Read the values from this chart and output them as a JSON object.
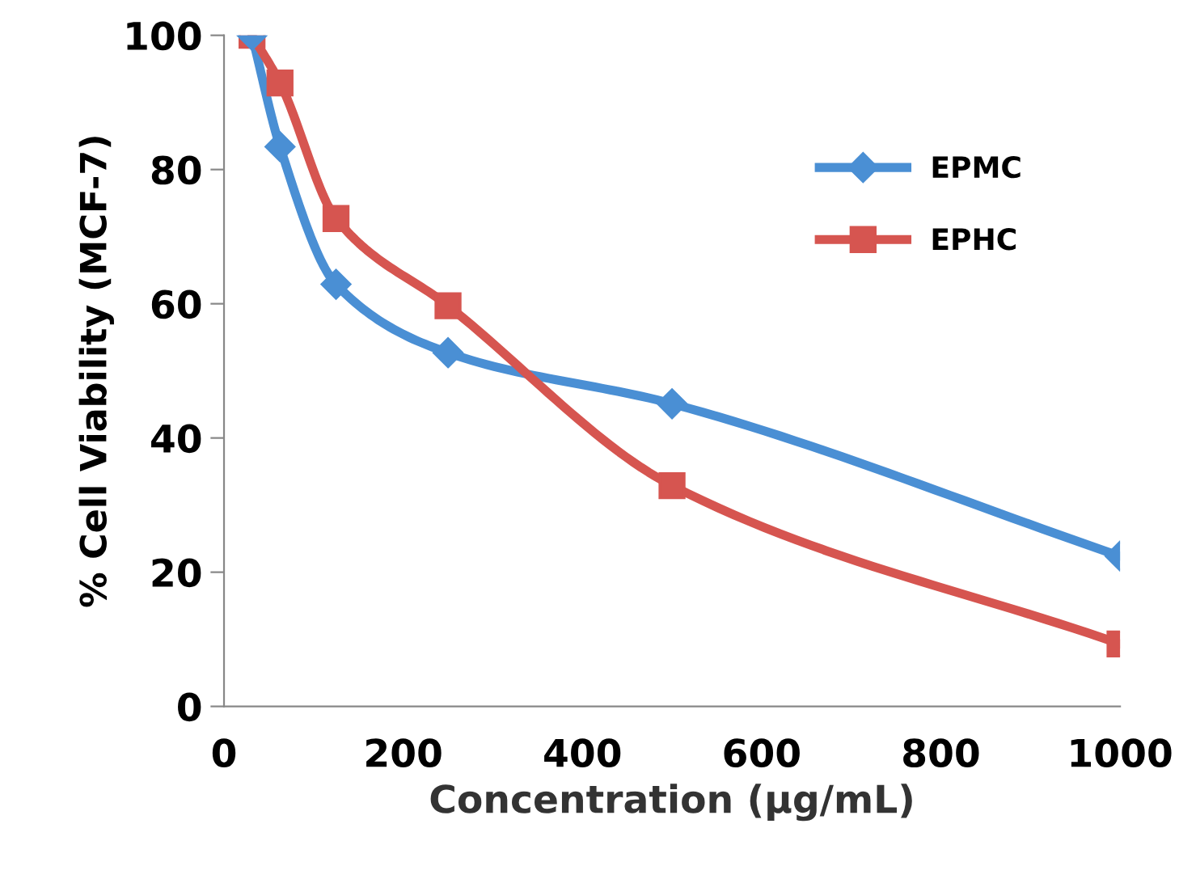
{
  "chart_data": {
    "type": "line",
    "xlabel": "Concentration (μg/mL)",
    "ylabel": "% Cell Viability (MCF-7)",
    "x": [
      31.25,
      62.5,
      125,
      250,
      500,
      1000
    ],
    "series": [
      {
        "name": "EPMC",
        "color": "#4a8fd4",
        "marker": "diamond",
        "values": [
          100,
          83.4,
          62.9,
          52.7,
          45.1,
          22.4
        ]
      },
      {
        "name": "EPHC",
        "color": "#d65550",
        "marker": "square",
        "values": [
          100,
          92.9,
          72.7,
          59.7,
          32.9,
          9.3
        ]
      }
    ],
    "xlim": [
      0,
      1000
    ],
    "ylim": [
      0,
      100
    ],
    "xticks": [
      0,
      200,
      400,
      600,
      800,
      1000
    ],
    "yticks": [
      0,
      20,
      40,
      60,
      80,
      100
    ],
    "grid": false,
    "legend": "top right",
    "line_style": "solid"
  }
}
